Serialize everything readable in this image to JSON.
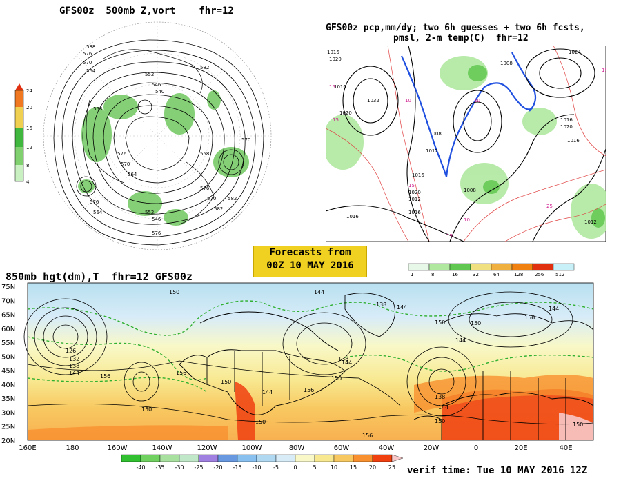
{
  "panel_top_left": {
    "title": "GFS00z  500mb Z,vort    fhr=12",
    "colorbar_ticks": [
      "24",
      "20",
      "16",
      "12",
      "8",
      "4"
    ],
    "contour_labels": [
      "588",
      "576",
      "570",
      "564",
      "558",
      "552",
      "546",
      "540",
      "582",
      "576",
      "570",
      "564",
      "558",
      "576",
      "570",
      "582",
      "552",
      "546",
      "576",
      "564",
      "570",
      "582",
      "576"
    ]
  },
  "panel_top_right": {
    "title_line1": "GFS00z pcp,mm/dy; two 6h guesses + two 6h fcsts,",
    "title_line2": "pmsl, 2-m temp(C)  fhr=12",
    "pressure_labels": [
      "1016",
      "1020",
      "1016",
      "1032",
      "1020",
      "1008",
      "1012",
      "1016",
      "1020",
      "1012",
      "1016",
      "1024",
      "1008",
      "1016",
      "1020",
      "1016",
      "1016",
      "1008",
      "1012"
    ],
    "temp_labels": [
      "15",
      "10",
      "15",
      "10",
      "15",
      "25",
      "15",
      "10",
      "15"
    ],
    "colorbar_ticks": [
      "1",
      "8",
      "16",
      "32",
      "64",
      "128",
      "256",
      "512"
    ],
    "colorbar_colors": [
      "#e8f8e8",
      "#b0e8a0",
      "#60c850",
      "#f0e080",
      "#f0b040",
      "#f08010",
      "#e03010",
      "#c8f0f8"
    ]
  },
  "banner": {
    "line1": "Forecasts from",
    "line2": "00Z 10 MAY 2016"
  },
  "panel_bottom": {
    "title": "850mb hgt(dm),T  fhr=12 GFS00z",
    "lat_labels": [
      "75N",
      "70N",
      "65N",
      "60N",
      "55N",
      "50N",
      "45N",
      "40N",
      "35N",
      "30N",
      "25N",
      "20N"
    ],
    "lon_labels": [
      "160E",
      "180",
      "160W",
      "140W",
      "120W",
      "100W",
      "80W",
      "60W",
      "40W",
      "20W",
      "0",
      "20E",
      "40E"
    ],
    "height_labels": [
      "150",
      "144",
      "138",
      "144",
      "144",
      "150",
      "126",
      "132",
      "138",
      "144",
      "156",
      "150",
      "156",
      "150",
      "144",
      "156",
      "150",
      "144",
      "138",
      "150",
      "144",
      "156",
      "150",
      "150",
      "156",
      "150",
      "138",
      "144"
    ],
    "colorbar_ticks": [
      "-40",
      "-35",
      "-30",
      "-25",
      "-20",
      "-15",
      "-10",
      "-5",
      "0",
      "5",
      "10",
      "15",
      "20",
      "25"
    ],
    "colorbar_colors": [
      "#30c030",
      "#70d060",
      "#a8e0a0",
      "#c0e8c8",
      "#a080e0",
      "#6898e0",
      "#88c0f0",
      "#b0d8f0",
      "#d8ecf8",
      "#f8f8c8",
      "#f8e890",
      "#f8c860",
      "#f89030",
      "#f04010"
    ],
    "verif_time": "verif time: Tue 10 MAY 2016 12Z"
  }
}
